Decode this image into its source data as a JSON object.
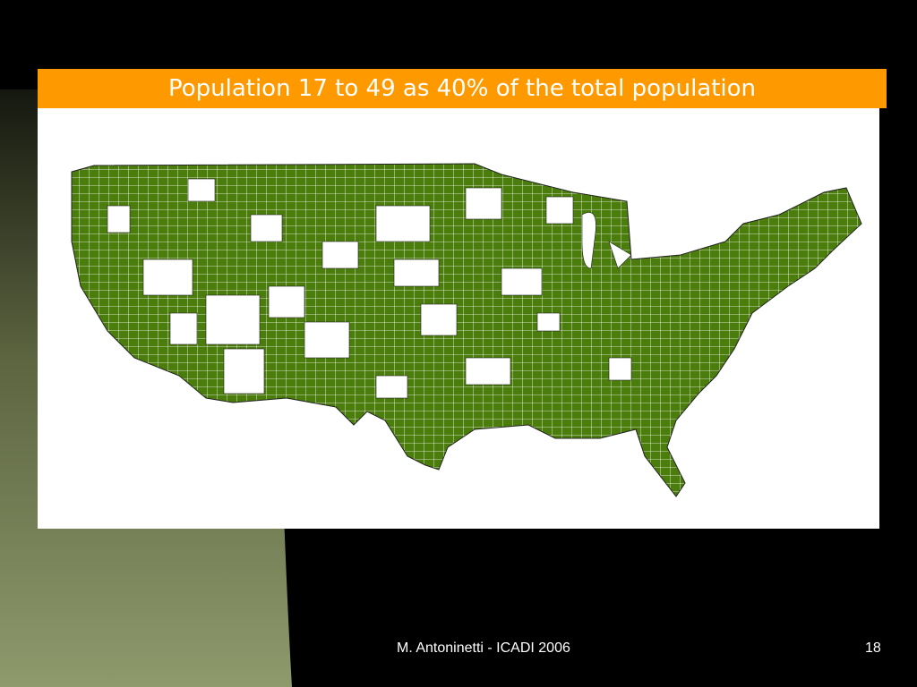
{
  "header": {
    "title": "Population 17 to 49 as 40% of the total population"
  },
  "footer": {
    "author": "M. Antoninetti - ICADI 2006",
    "page": 18
  }
}
